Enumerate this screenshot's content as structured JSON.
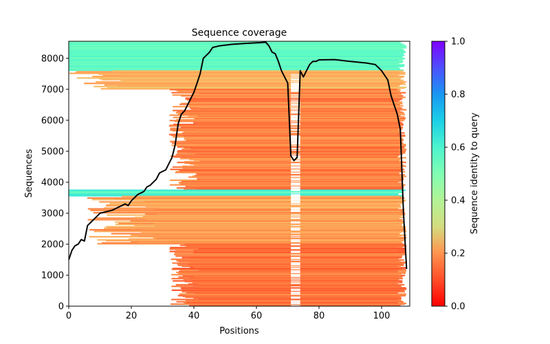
{
  "chart_data": {
    "type": "heatmap",
    "title": "Sequence coverage",
    "xlabel": "Positions",
    "ylabel": "Sequences",
    "xlim": [
      0,
      109
    ],
    "ylim": [
      0,
      8550
    ],
    "xticks": [
      0,
      20,
      40,
      60,
      80,
      100
    ],
    "yticks": [
      0,
      1000,
      2000,
      3000,
      4000,
      5000,
      6000,
      7000,
      8000
    ],
    "grid": false,
    "colorbar": {
      "label": "Sequence identity to query",
      "range": [
        0.0,
        1.0
      ],
      "ticks": [
        "0.0",
        "0.2",
        "0.4",
        "0.6",
        "0.8",
        "1.0"
      ],
      "colormap": "rainbow_r"
    },
    "coverage_bands": [
      {
        "y_from": 7600,
        "y_to": 8550,
        "x_from": 0,
        "x_to": 108,
        "identity": 0.55,
        "note": "high identity top block"
      },
      {
        "y_from": 7000,
        "y_to": 7600,
        "x_from": 0,
        "x_to": 108,
        "identity": 0.25
      },
      {
        "y_from": 3750,
        "y_to": 7000,
        "x_from": 35,
        "x_to": 108,
        "identity": 0.17
      },
      {
        "y_from": 3550,
        "y_to": 3750,
        "x_from": 0,
        "x_to": 108,
        "identity": 0.6,
        "note": "high identity middle block"
      },
      {
        "y_from": 2000,
        "y_to": 3550,
        "x_from": 5,
        "x_to": 108,
        "identity": 0.22
      },
      {
        "y_from": 0,
        "y_to": 2000,
        "x_from": 35,
        "x_to": 108,
        "identity": 0.15
      }
    ],
    "series": [
      {
        "name": "coverage",
        "color": "#000000",
        "x": [
          0,
          1,
          2,
          3,
          4,
          5,
          6,
          7,
          8,
          10,
          12,
          14,
          16,
          17,
          18,
          19,
          20,
          21,
          22,
          24,
          25,
          26,
          28,
          29,
          31,
          32,
          33,
          34,
          35,
          36,
          37,
          38,
          40,
          41,
          42,
          43,
          45,
          46,
          48,
          52,
          56,
          60,
          63,
          64,
          65,
          66,
          67,
          68,
          70,
          71,
          72,
          73,
          74,
          75,
          76,
          77,
          78,
          79,
          80,
          85,
          90,
          95,
          98,
          100,
          102,
          103,
          104,
          105,
          106,
          107,
          108
        ],
        "y": [
          1500,
          1800,
          1950,
          2000,
          2150,
          2100,
          2600,
          2700,
          2800,
          3000,
          3050,
          3100,
          3200,
          3250,
          3300,
          3250,
          3400,
          3500,
          3600,
          3700,
          3850,
          3900,
          4100,
          4300,
          4400,
          4600,
          4800,
          5200,
          5900,
          6200,
          6300,
          6500,
          6900,
          7200,
          7500,
          8000,
          8200,
          8350,
          8400,
          8450,
          8480,
          8500,
          8520,
          8400,
          8200,
          8150,
          7900,
          7600,
          7200,
          4850,
          4700,
          4800,
          7600,
          7400,
          7600,
          7800,
          7900,
          7900,
          7950,
          7960,
          7900,
          7850,
          7800,
          7600,
          7300,
          6800,
          6500,
          6200,
          5700,
          3000,
          1200
        ]
      }
    ]
  }
}
